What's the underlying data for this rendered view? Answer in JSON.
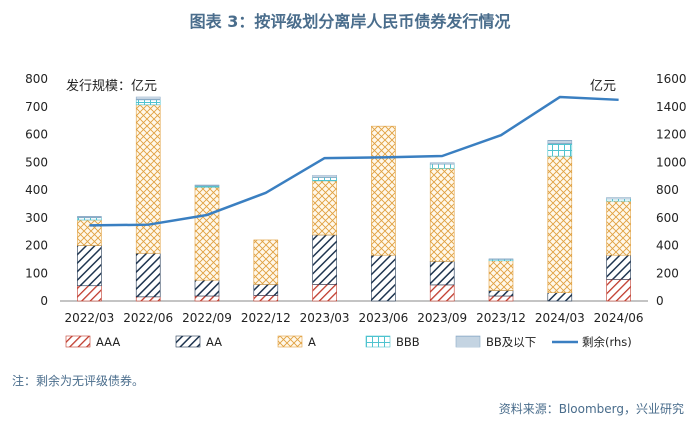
{
  "title": "图表 3：按评级划分离岸人民币债券发行情况",
  "note": "注：剩余为无评级债券。",
  "source": "资料来源：Bloomberg，兴业研究",
  "chart_data": {
    "type": "bar",
    "stacked": true,
    "left_axis_label": "发行规模：亿元",
    "right_axis_label": "亿元",
    "categories": [
      "2022/03",
      "2022/06",
      "2022/09",
      "2022/12",
      "2023/03",
      "2023/06",
      "2023/09",
      "2023/12",
      "2024/03",
      "2024/06"
    ],
    "ylim": [
      0,
      800
    ],
    "y_ticks": [
      0,
      100,
      200,
      300,
      400,
      500,
      600,
      700,
      800
    ],
    "y2lim": [
      0,
      1600
    ],
    "y2_ticks": [
      0,
      200,
      400,
      600,
      800,
      1000,
      1200,
      1400,
      1600
    ],
    "series": [
      {
        "name": "AAA",
        "color": "#c0392b",
        "values": [
          55,
          15,
          18,
          20,
          60,
          0,
          58,
          18,
          0,
          78
        ]
      },
      {
        "name": "AA",
        "color": "#1f3550",
        "values": [
          145,
          157,
          57,
          40,
          178,
          165,
          85,
          20,
          30,
          87
        ]
      },
      {
        "name": "A",
        "color": "#e0a040",
        "values": [
          92,
          535,
          335,
          160,
          195,
          465,
          335,
          107,
          492,
          195
        ]
      },
      {
        "name": "BBB",
        "color": "#4fc3cf",
        "values": [
          8,
          18,
          5,
          0,
          12,
          0,
          15,
          5,
          45,
          8
        ]
      },
      {
        "name": "BB及以下",
        "color": "#8aaac6",
        "values": [
          5,
          10,
          3,
          0,
          8,
          0,
          5,
          2,
          12,
          5
        ]
      }
    ],
    "line": {
      "name": "剩余(rhs)",
      "color": "#3a7fc1",
      "values": [
        545,
        550,
        620,
        780,
        1030,
        1035,
        1045,
        1195,
        1470,
        1450
      ]
    }
  }
}
